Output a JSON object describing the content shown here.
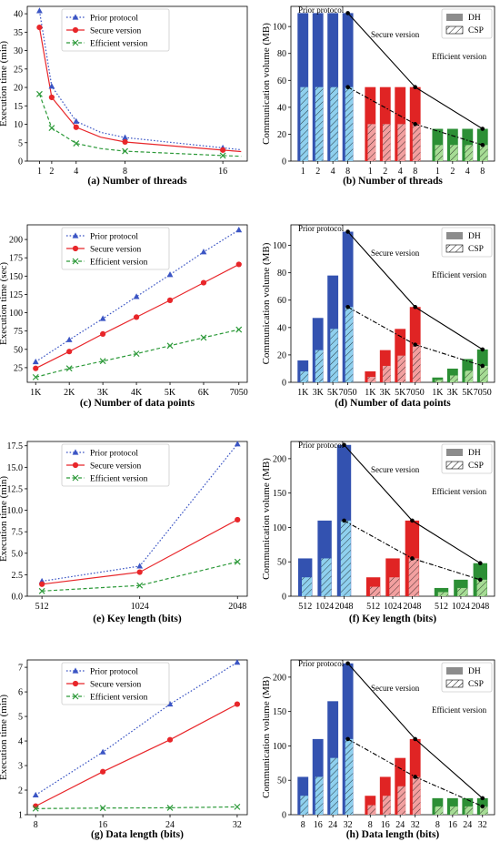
{
  "colors": {
    "prior": "#3b55c4",
    "secure": "#e8262a",
    "efficient": "#2d9a3a",
    "dh_prior": "#3352b0",
    "csp_prior": "#8fd0ee",
    "dh_secure": "#e02424",
    "csp_secure": "#f2a0a0",
    "dh_eff": "#2c8f35",
    "csp_eff": "#a6dc95"
  },
  "chart_data": [
    {
      "type": "line",
      "caption": "(a) Number of threads",
      "ylabel": "Execution time (min)",
      "x": [
        1,
        2,
        4,
        8,
        16
      ],
      "xticks": [
        "1",
        "2",
        "4",
        "8",
        "16"
      ],
      "xlim": [
        0,
        18
      ],
      "ylim": [
        0,
        42
      ],
      "yticks": [
        0,
        5,
        10,
        15,
        20,
        25,
        30,
        35,
        40
      ],
      "series": [
        {
          "name": "Prior protocol",
          "style": "prior",
          "x": [
            1,
            2,
            4,
            6,
            8,
            16,
            17.5
          ],
          "values": [
            40.8,
            20.3,
            10.8,
            7.8,
            6.4,
            3.6,
            3.1
          ]
        },
        {
          "name": "Secure version",
          "style": "secure",
          "x": [
            1,
            2,
            4,
            6,
            8,
            16,
            17.5
          ],
          "values": [
            36.3,
            17.3,
            9.2,
            6.5,
            5.2,
            3.0,
            2.6
          ]
        },
        {
          "name": "Efficient version",
          "style": "efficient",
          "x": [
            1,
            2,
            4,
            6,
            8,
            16,
            17.5
          ],
          "values": [
            18.2,
            9.0,
            4.8,
            3.4,
            2.7,
            1.5,
            1.3
          ]
        }
      ],
      "markers": [
        {
          "style": "prior",
          "x": [
            1,
            2,
            4,
            8,
            16
          ],
          "values": [
            40.8,
            20.3,
            10.8,
            6.4,
            3.6
          ]
        },
        {
          "style": "secure",
          "x": [
            1,
            2,
            4,
            8,
            16
          ],
          "values": [
            36.3,
            17.3,
            9.2,
            5.2,
            3.0
          ]
        },
        {
          "style": "efficient",
          "x": [
            1,
            2,
            4,
            8,
            16
          ],
          "values": [
            18.2,
            9.0,
            4.8,
            2.7,
            1.5
          ]
        }
      ]
    },
    {
      "type": "bar",
      "caption": "(b) Number of threads",
      "ylabel": "Communication volume (MB)",
      "legend": [
        "DH",
        "CSP"
      ],
      "groups": [
        {
          "label": "Prior protocol",
          "style": "prior",
          "categories": [
            "1",
            "2",
            "4",
            "8"
          ],
          "dh": [
            110,
            110,
            110,
            110
          ],
          "csp": [
            55,
            55,
            55,
            55
          ]
        },
        {
          "label": "Secure version",
          "style": "secure",
          "categories": [
            "1",
            "2",
            "4",
            "8"
          ],
          "dh": [
            55,
            55,
            55,
            55
          ],
          "csp": [
            27.5,
            27.5,
            27.5,
            27.5
          ]
        },
        {
          "label": "Efficient version",
          "style": "efficient",
          "categories": [
            "1",
            "2",
            "4",
            "8"
          ],
          "dh": [
            24,
            24,
            24,
            24
          ],
          "csp": [
            12,
            12,
            12,
            12
          ]
        }
      ],
      "ylim": [
        0,
        115
      ],
      "yticks": [
        0,
        20,
        40,
        60,
        80,
        100
      ]
    },
    {
      "type": "line",
      "caption": "(c) Number of data points",
      "ylabel": "Execution time (sec)",
      "x": [
        1,
        2,
        3,
        4,
        5,
        6,
        7.05
      ],
      "xticks": [
        "1K",
        "2K",
        "3K",
        "4K",
        "5K",
        "6K",
        "7050"
      ],
      "xlim": [
        0.75,
        7.3
      ],
      "ylim": [
        5,
        220
      ],
      "yticks": [
        25,
        50,
        75,
        100,
        125,
        150,
        175,
        200
      ],
      "series": [
        {
          "name": "Prior protocol",
          "style": "prior",
          "values": [
            33,
            63,
            92,
            122,
            152,
            183,
            213
          ]
        },
        {
          "name": "Secure version",
          "style": "secure",
          "values": [
            24,
            47,
            71,
            94,
            117,
            141,
            166
          ]
        },
        {
          "name": "Efficient version",
          "style": "efficient",
          "values": [
            12,
            24,
            34,
            44,
            55,
            66,
            77
          ]
        }
      ]
    },
    {
      "type": "bar",
      "caption": "(d) Number of data points",
      "ylabel": "Communication volume (MB)",
      "legend": [
        "DH",
        "CSP"
      ],
      "groups": [
        {
          "label": "Prior protocol",
          "style": "prior",
          "categories": [
            "1K",
            "3K",
            "5K",
            "7050"
          ],
          "dh": [
            16,
            47,
            78,
            110
          ],
          "csp": [
            8,
            23.5,
            39,
            55
          ]
        },
        {
          "label": "Secure version",
          "style": "secure",
          "categories": [
            "1K",
            "3K",
            "5K",
            "7050"
          ],
          "dh": [
            8,
            23.5,
            39,
            55
          ],
          "csp": [
            4,
            12,
            19.5,
            27.5
          ]
        },
        {
          "label": "Efficient version",
          "style": "efficient",
          "categories": [
            "1K",
            "3K",
            "5K",
            "7050"
          ],
          "dh": [
            3.5,
            10,
            17,
            24
          ],
          "csp": [
            1.8,
            5,
            8.5,
            12
          ]
        }
      ],
      "ylim": [
        0,
        115
      ],
      "yticks": [
        0,
        20,
        40,
        60,
        80,
        100
      ]
    },
    {
      "type": "line",
      "caption": "(e) Key length (bits)",
      "ylabel": "Execution time (min)",
      "x": [
        512,
        1024,
        2048
      ],
      "xticks": [
        "512",
        "1024",
        "2048"
      ],
      "xpos": [
        0,
        1,
        2
      ],
      "xlim": [
        -0.15,
        2.1
      ],
      "ylim": [
        0,
        18
      ],
      "yticks": [
        0.0,
        2.5,
        5.0,
        7.5,
        10.0,
        12.5,
        15.0,
        17.5
      ],
      "series": [
        {
          "name": "Prior protocol",
          "style": "prior",
          "values": [
            1.75,
            3.5,
            17.7
          ]
        },
        {
          "name": "Secure version",
          "style": "secure",
          "values": [
            1.4,
            2.8,
            8.9
          ]
        },
        {
          "name": "Efficient version",
          "style": "efficient",
          "values": [
            0.6,
            1.25,
            4.0
          ]
        }
      ]
    },
    {
      "type": "bar",
      "caption": "(f) Key length (bits)",
      "ylabel": "Communication volume (MB)",
      "legend": [
        "DH",
        "CSP"
      ],
      "groups": [
        {
          "label": "Prior protocol",
          "style": "prior",
          "categories": [
            "512",
            "1024",
            "2048"
          ],
          "dh": [
            55,
            110,
            220
          ],
          "csp": [
            27.5,
            55,
            110
          ]
        },
        {
          "label": "Secure version",
          "style": "secure",
          "categories": [
            "512",
            "1024",
            "2048"
          ],
          "dh": [
            27.5,
            55,
            110
          ],
          "csp": [
            13.8,
            27.5,
            55
          ]
        },
        {
          "label": "Efficient version",
          "style": "efficient",
          "categories": [
            "512",
            "1024",
            "2048"
          ],
          "dh": [
            12,
            24,
            48
          ],
          "csp": [
            6,
            12,
            24
          ]
        }
      ],
      "ylim": [
        0,
        225
      ],
      "yticks": [
        0,
        50,
        100,
        150,
        200
      ]
    },
    {
      "type": "line",
      "caption": "(g) Data length (bits)",
      "ylabel": "Execution time (min)",
      "x": [
        8,
        16,
        24,
        32
      ],
      "xticks": [
        "8",
        "16",
        "24",
        "32"
      ],
      "xlim": [
        7,
        33.2
      ],
      "ylim": [
        1,
        7.3
      ],
      "yticks": [
        1,
        2,
        3,
        4,
        5,
        6,
        7
      ],
      "series": [
        {
          "name": "Prior protocol",
          "style": "prior",
          "values": [
            1.8,
            3.55,
            5.5,
            7.2
          ]
        },
        {
          "name": "Secure version",
          "style": "secure",
          "values": [
            1.35,
            2.75,
            4.05,
            5.5
          ]
        },
        {
          "name": "Efficient version",
          "style": "efficient",
          "values": [
            1.25,
            1.27,
            1.28,
            1.32
          ]
        }
      ]
    },
    {
      "type": "bar",
      "caption": "(h) Data length (bits)",
      "ylabel": "Communication volume (MB)",
      "legend": [
        "DH",
        "CSP"
      ],
      "groups": [
        {
          "label": "Prior protocol",
          "style": "prior",
          "categories": [
            "8",
            "16",
            "24",
            "32"
          ],
          "dh": [
            55,
            110,
            165,
            220
          ],
          "csp": [
            27.5,
            55,
            82.5,
            110
          ]
        },
        {
          "label": "Secure version",
          "style": "secure",
          "categories": [
            "8",
            "16",
            "24",
            "32"
          ],
          "dh": [
            27.5,
            55,
            82.5,
            110
          ],
          "csp": [
            13.8,
            27.5,
            41.3,
            55
          ]
        },
        {
          "label": "Efficient version",
          "style": "efficient",
          "categories": [
            "8",
            "16",
            "24",
            "32"
          ],
          "dh": [
            24,
            24,
            24,
            24
          ],
          "csp": [
            12,
            12,
            12,
            12
          ]
        }
      ],
      "ylim": [
        0,
        225
      ],
      "yticks": [
        0,
        50,
        100,
        150,
        200
      ]
    }
  ]
}
